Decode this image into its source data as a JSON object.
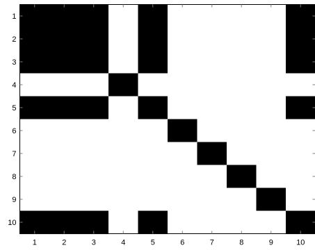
{
  "chart_data": {
    "type": "heatmap",
    "title": "",
    "xlabel": "",
    "ylabel": "",
    "x_categories": [
      "1",
      "2",
      "3",
      "4",
      "5",
      "6",
      "7",
      "8",
      "9",
      "10"
    ],
    "y_categories": [
      "1",
      "2",
      "3",
      "4",
      "5",
      "6",
      "7",
      "8",
      "9",
      "10"
    ],
    "xlim": [
      0.5,
      10.5
    ],
    "ylim": [
      0.5,
      10.5
    ],
    "y_axis_direction": "reversed",
    "grid": false,
    "colormap": {
      "0": "#ffffff",
      "1": "#000000"
    },
    "values": [
      [
        1,
        1,
        1,
        0,
        1,
        0,
        0,
        0,
        0,
        1
      ],
      [
        1,
        1,
        1,
        0,
        1,
        0,
        0,
        0,
        0,
        1
      ],
      [
        1,
        1,
        1,
        0,
        1,
        0,
        0,
        0,
        0,
        1
      ],
      [
        0,
        0,
        0,
        1,
        0,
        0,
        0,
        0,
        0,
        0
      ],
      [
        1,
        1,
        1,
        0,
        1,
        0,
        0,
        0,
        0,
        1
      ],
      [
        0,
        0,
        0,
        0,
        0,
        1,
        0,
        0,
        0,
        0
      ],
      [
        0,
        0,
        0,
        0,
        0,
        0,
        1,
        0,
        0,
        0
      ],
      [
        0,
        0,
        0,
        0,
        0,
        0,
        0,
        1,
        0,
        0
      ],
      [
        0,
        0,
        0,
        0,
        0,
        0,
        0,
        0,
        1,
        0
      ],
      [
        1,
        1,
        1,
        0,
        1,
        0,
        0,
        0,
        0,
        1
      ]
    ]
  }
}
